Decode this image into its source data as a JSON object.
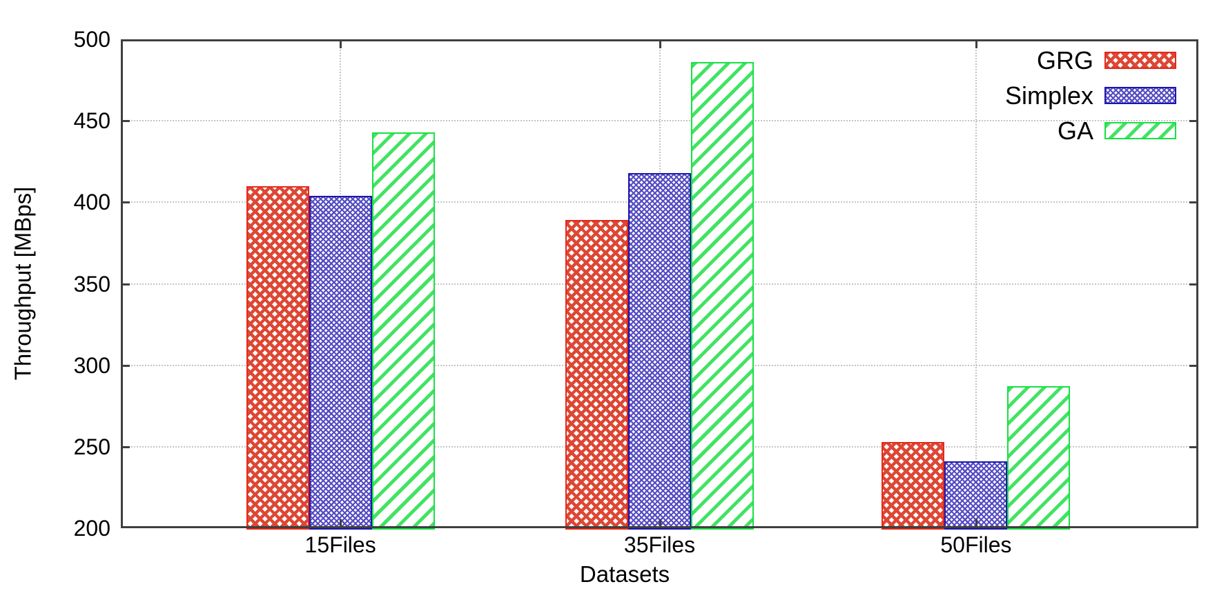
{
  "chart_data": {
    "type": "bar",
    "title": "",
    "xlabel": "Datasets",
    "ylabel": "Throughput [MBps]",
    "ylim": [
      200,
      500
    ],
    "yticks": [
      200,
      250,
      300,
      350,
      400,
      450,
      500
    ],
    "categories": [
      "15Files",
      "35Files",
      "50Files"
    ],
    "series": [
      {
        "name": "GRG",
        "values": [
          410,
          389,
          253
        ],
        "pattern": "crosshatch-coarse",
        "color": "#dd4734",
        "border": "#e3281a"
      },
      {
        "name": "Simplex",
        "values": [
          404,
          418,
          241
        ],
        "pattern": "crosshatch-fine",
        "color": "#554cc2",
        "border": "#1b16ad"
      },
      {
        "name": "GA",
        "values": [
          443,
          486,
          287
        ],
        "pattern": "diagonal",
        "color": "#42e363",
        "border": "#15e141"
      }
    ],
    "legend_position": "top-right",
    "grid": true,
    "grid_color": "#c4c4c4",
    "frame_color": "#3f3f3f",
    "background_color": "#ffffff",
    "text_color": "#000000"
  }
}
